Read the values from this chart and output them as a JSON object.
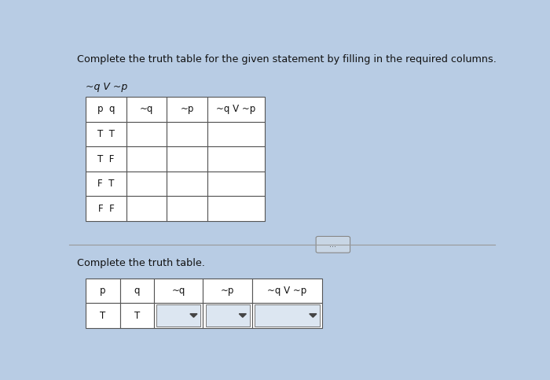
{
  "bg_color": "#b8cce4",
  "title_text": "Complete the truth table for the given statement by filling in the required columns.",
  "formula_top": "~q V ~p",
  "table1_headers": [
    "p  q",
    "~q",
    "~p",
    "~q V ~p"
  ],
  "table1_rows": [
    [
      "T  T",
      "",
      "",
      ""
    ],
    [
      "T  F",
      "",
      "",
      ""
    ],
    [
      "F  T",
      "",
      "",
      ""
    ],
    [
      "F  F",
      "",
      "",
      ""
    ]
  ],
  "divider_text": "...",
  "subtitle_text": "Complete the truth table.",
  "table2_headers": [
    "p",
    "q",
    "~q",
    "~p",
    "~q V ~p"
  ],
  "table2_row_values": [
    "T",
    "T",
    "",
    "",
    ""
  ],
  "table2_has_dropdown": [
    false,
    false,
    true,
    true,
    true
  ],
  "white_color": "#ffffff",
  "cell_bg": "#dce6f1",
  "border_color": "#555555",
  "text_color": "#111111"
}
